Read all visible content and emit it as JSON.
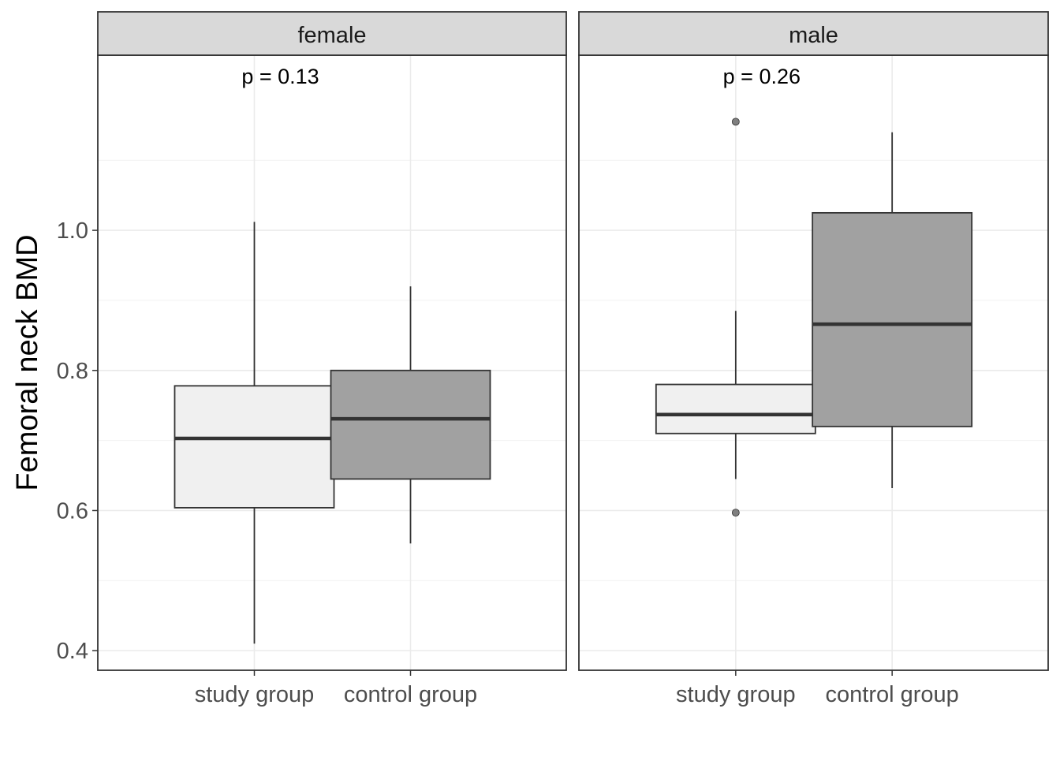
{
  "chart_data": {
    "type": "boxplot",
    "ylabel": "Femoral neck BMD",
    "xlabel": "",
    "ylim": [
      0.372,
      1.25
    ],
    "y_ticks": [
      0.4,
      0.6,
      0.8,
      1.0
    ],
    "y_tick_labels": [
      "0.4",
      "0.6",
      "0.8",
      "1.0"
    ],
    "y_minor_ticks": [
      0.5,
      0.7,
      0.9,
      1.1
    ],
    "categories": [
      "study group",
      "control group"
    ],
    "grid": true,
    "colors": {
      "study group": "#f0f0f0",
      "control group": "#a1a1a1",
      "outline": "#333333",
      "outlier": "#7f7f7f"
    },
    "panels": [
      {
        "facet": "female",
        "annotation": "p = 0.13",
        "boxes": [
          {
            "category": "study group",
            "min": 0.41,
            "q1": 0.604,
            "median": 0.703,
            "q3": 0.778,
            "max": 1.012,
            "outliers": []
          },
          {
            "category": "control group",
            "min": 0.553,
            "q1": 0.645,
            "median": 0.731,
            "q3": 0.8,
            "max": 0.92,
            "outliers": []
          }
        ]
      },
      {
        "facet": "male",
        "annotation": "p = 0.26",
        "boxes": [
          {
            "category": "study group",
            "min": 0.645,
            "q1": 0.71,
            "median": 0.737,
            "q3": 0.78,
            "max": 0.885,
            "outliers": [
              0.597,
              1.155
            ]
          },
          {
            "category": "control group",
            "min": 0.632,
            "q1": 0.72,
            "median": 0.866,
            "q3": 1.025,
            "max": 1.14,
            "outliers": []
          }
        ]
      }
    ]
  }
}
